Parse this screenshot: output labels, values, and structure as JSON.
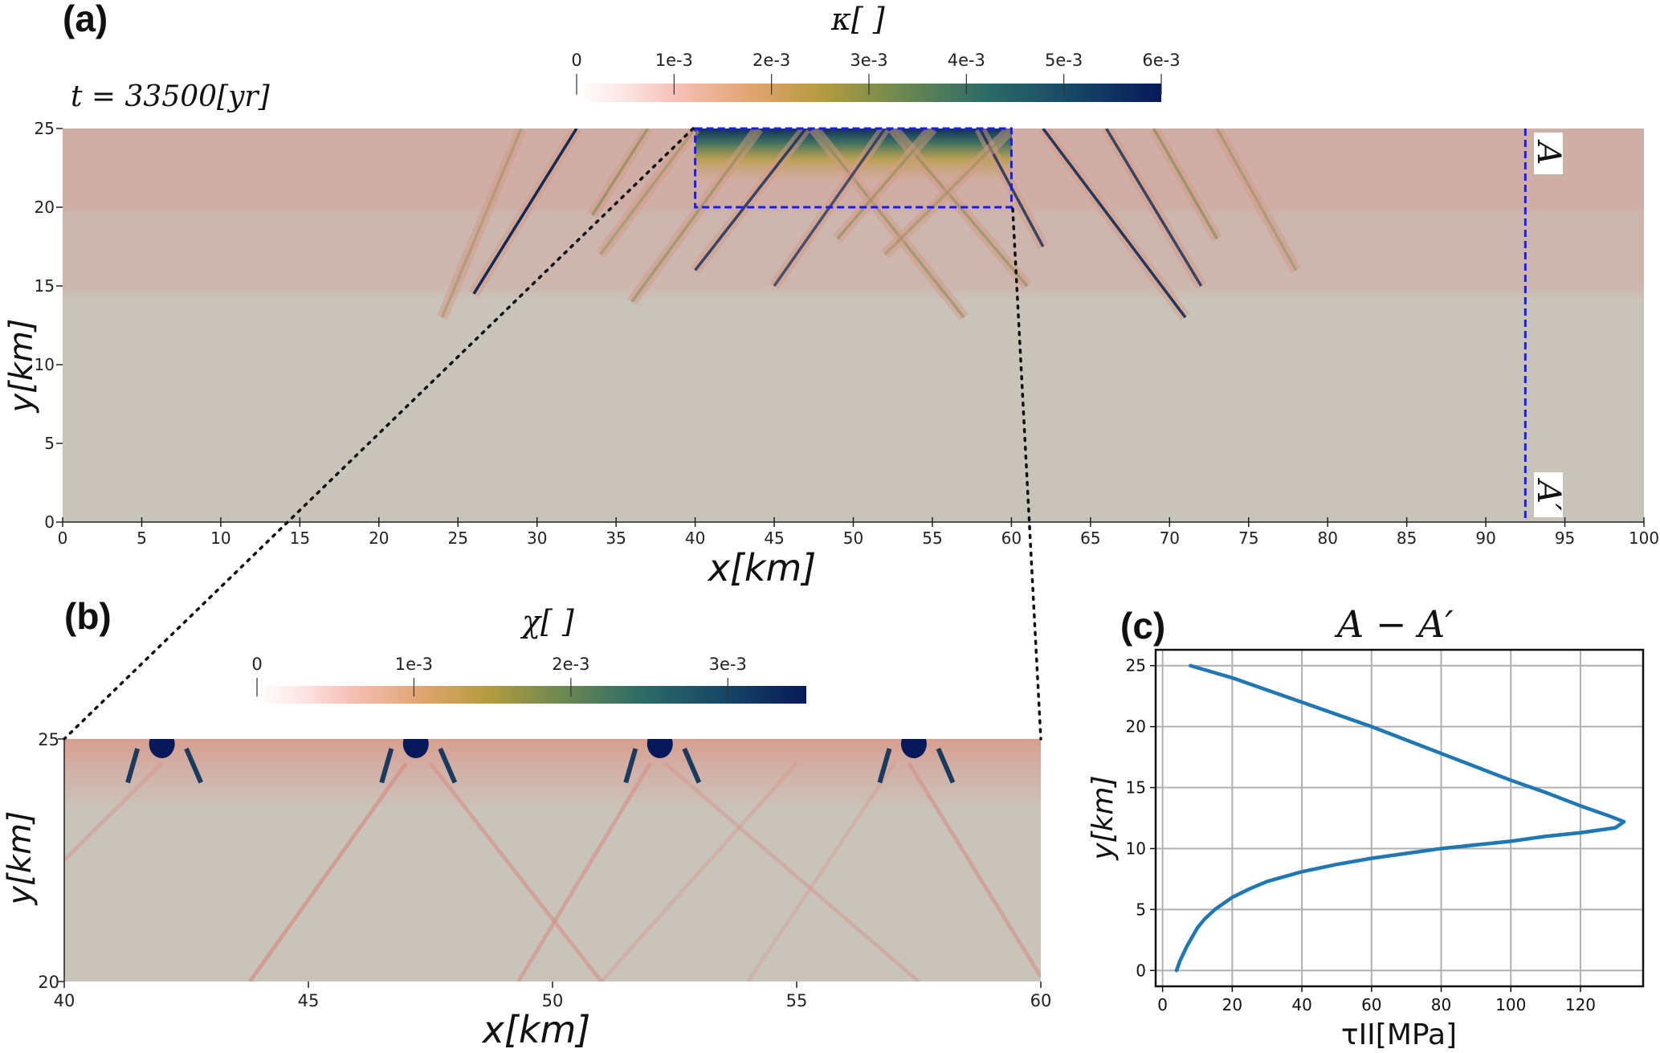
{
  "panels": {
    "a": {
      "label": "(a)",
      "time_label": "t = 33500[yr]",
      "colorbar_title": "κ[  ]",
      "section_start": "A",
      "section_end": "A′"
    },
    "b": {
      "label": "(b)",
      "colorbar_title": "χ[  ]"
    },
    "c": {
      "label": "(c)",
      "title": "A − A′"
    }
  },
  "colors": {
    "background_field": "#c9c4ba",
    "upper_layer": "#cdb3ab",
    "highlight_box": "#1a1aff",
    "line": "#1f77b4",
    "grid": "#b0b0b0"
  },
  "chart_data": [
    {
      "type": "heatmap",
      "panel": "a",
      "xlabel": "x[km]",
      "ylabel": "y[km]",
      "xlim": [
        0,
        100
      ],
      "ylim": [
        0,
        25
      ],
      "xticks": [
        "0",
        "5",
        "10",
        "15",
        "20",
        "25",
        "30",
        "35",
        "40",
        "45",
        "50",
        "55",
        "60",
        "65",
        "70",
        "75",
        "80",
        "85",
        "90",
        "95",
        "100"
      ],
      "yticks": [
        "0",
        "5",
        "10",
        "15",
        "20",
        "25"
      ],
      "colorbar": {
        "title": "κ[  ]",
        "range": [
          0,
          0.006
        ],
        "ticks": [
          "0",
          "1e-3",
          "2e-3",
          "3e-3",
          "4e-3",
          "5e-3",
          "6e-3"
        ]
      },
      "zoom_box": {
        "x": [
          40,
          60
        ],
        "y": [
          20,
          25
        ]
      },
      "section_line_x": 92.5
    },
    {
      "type": "heatmap",
      "panel": "b",
      "xlabel": "x[km]",
      "ylabel": "y[km]",
      "xlim": [
        40,
        60
      ],
      "ylim": [
        20,
        25
      ],
      "xticks": [
        "40",
        "45",
        "50",
        "55",
        "60"
      ],
      "yticks": [
        "20",
        "25"
      ],
      "colorbar": {
        "title": "χ[  ]",
        "range": [
          0,
          0.0035
        ],
        "ticks": [
          "0",
          "1e-3",
          "2e-3",
          "3e-3"
        ]
      }
    },
    {
      "type": "line",
      "panel": "c",
      "title": "A − A′",
      "xlabel": "τII[MPa]",
      "ylabel": "y[km]",
      "xlim": [
        -2,
        138
      ],
      "ylim": [
        -1.3,
        26.3
      ],
      "grid": true,
      "xticks": [
        0,
        20,
        40,
        60,
        80,
        100,
        120
      ],
      "yticks": [
        0,
        5,
        10,
        15,
        20,
        25
      ],
      "series": [
        {
          "x": [
            8,
            20,
            30,
            40,
            50,
            60,
            70,
            80,
            90,
            100,
            110,
            120,
            128,
            132.5,
            130,
            120,
            110,
            100,
            90,
            80,
            70,
            60,
            50,
            40,
            30,
            25,
            20,
            15,
            12,
            10,
            7,
            5,
            4
          ],
          "y": [
            25,
            24,
            23,
            22,
            21,
            20,
            18.9,
            17.8,
            16.7,
            15.6,
            14.6,
            13.5,
            12.7,
            12.2,
            11.7,
            11.3,
            11.0,
            10.6,
            10.3,
            10.0,
            9.6,
            9.2,
            8.7,
            8.1,
            7.3,
            6.7,
            6.0,
            5.0,
            4.2,
            3.5,
            2.0,
            0.8,
            0
          ]
        }
      ]
    }
  ]
}
